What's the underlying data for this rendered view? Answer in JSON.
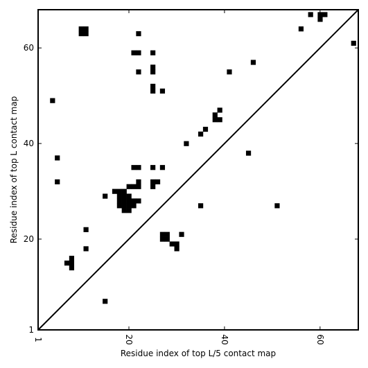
{
  "chart_data": {
    "type": "heatmap",
    "title": "",
    "xlabel": "Residue index of top L/5 contact map",
    "ylabel": "Residue index of top L contact map",
    "xlim": [
      1,
      68
    ],
    "ylim": [
      1,
      68
    ],
    "xticks": [
      1,
      20,
      40,
      60
    ],
    "yticks": [
      1,
      20,
      40,
      60
    ],
    "diagonal": true,
    "cell_color": "#000000",
    "contacts": [
      [
        4,
        49
      ],
      [
        5,
        37
      ],
      [
        5,
        32
      ],
      [
        7,
        15
      ],
      [
        8,
        16
      ],
      [
        8,
        15
      ],
      [
        8,
        14
      ],
      [
        10,
        64
      ],
      [
        10,
        63
      ],
      [
        11,
        64
      ],
      [
        11,
        63
      ],
      [
        11,
        22
      ],
      [
        11,
        18
      ],
      [
        15,
        29
      ],
      [
        15,
        7
      ],
      [
        17,
        30
      ],
      [
        18,
        30
      ],
      [
        18,
        29
      ],
      [
        18,
        28
      ],
      [
        18,
        27
      ],
      [
        19,
        30
      ],
      [
        19,
        29
      ],
      [
        19,
        28
      ],
      [
        19,
        27
      ],
      [
        19,
        26
      ],
      [
        20,
        29
      ],
      [
        20,
        28
      ],
      [
        20,
        27
      ],
      [
        20,
        26
      ],
      [
        20,
        31
      ],
      [
        21,
        28
      ],
      [
        21,
        27
      ],
      [
        21,
        31
      ],
      [
        21,
        35
      ],
      [
        21,
        59
      ],
      [
        22,
        32
      ],
      [
        22,
        31
      ],
      [
        22,
        28
      ],
      [
        22,
        35
      ],
      [
        22,
        59
      ],
      [
        22,
        55
      ],
      [
        22,
        63
      ],
      [
        25,
        59
      ],
      [
        25,
        56
      ],
      [
        25,
        55
      ],
      [
        25,
        52
      ],
      [
        25,
        51
      ],
      [
        25,
        35
      ],
      [
        25,
        32
      ],
      [
        25,
        31
      ],
      [
        26,
        32
      ],
      [
        27,
        51
      ],
      [
        27,
        35
      ],
      [
        27,
        21
      ],
      [
        27,
        20
      ],
      [
        28,
        21
      ],
      [
        28,
        20
      ],
      [
        29,
        19
      ],
      [
        30,
        19
      ],
      [
        30,
        18
      ],
      [
        31,
        21
      ],
      [
        32,
        40
      ],
      [
        35,
        42
      ],
      [
        35,
        27
      ],
      [
        36,
        43
      ],
      [
        38,
        46
      ],
      [
        38,
        45
      ],
      [
        39,
        47
      ],
      [
        39,
        45
      ],
      [
        41,
        55
      ],
      [
        45,
        38
      ],
      [
        46,
        57
      ],
      [
        51,
        27
      ],
      [
        56,
        64
      ],
      [
        58,
        67
      ],
      [
        60,
        67
      ],
      [
        60,
        66
      ],
      [
        61,
        67
      ],
      [
        67,
        61
      ]
    ]
  }
}
